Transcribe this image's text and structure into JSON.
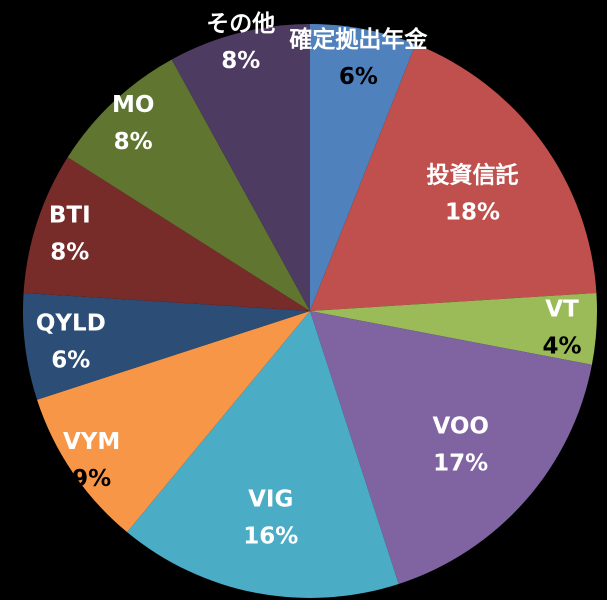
{
  "chart_data": {
    "type": "pie",
    "title": "",
    "slices": [
      {
        "label": "確定拠出年金",
        "value": 6,
        "value_label": "6%",
        "color": "#4F81BD"
      },
      {
        "label": "投資信託",
        "value": 18,
        "value_label": "18%",
        "color": "#C0504D"
      },
      {
        "label": "VT",
        "value": 4,
        "value_label": "4%",
        "color": "#9BBB59"
      },
      {
        "label": "VOO",
        "value": 17,
        "value_label": "17%",
        "color": "#8064A2"
      },
      {
        "label": "VIG",
        "value": 16,
        "value_label": "16%",
        "color": "#4BACC6"
      },
      {
        "label": "VYM",
        "value": 9,
        "value_label": "9%",
        "color": "#F79646"
      },
      {
        "label": "QYLD",
        "value": 6,
        "value_label": "6%",
        "color": "#2C4D75"
      },
      {
        "label": "BTI",
        "value": 8,
        "value_label": "8%",
        "color": "#772C2A"
      },
      {
        "label": "MO",
        "value": 8,
        "value_label": "8%",
        "color": "#5F7530"
      },
      {
        "label": "その他",
        "value": 8,
        "value_label": "8%",
        "color": "#4D3B62"
      }
    ],
    "legend": "none"
  }
}
